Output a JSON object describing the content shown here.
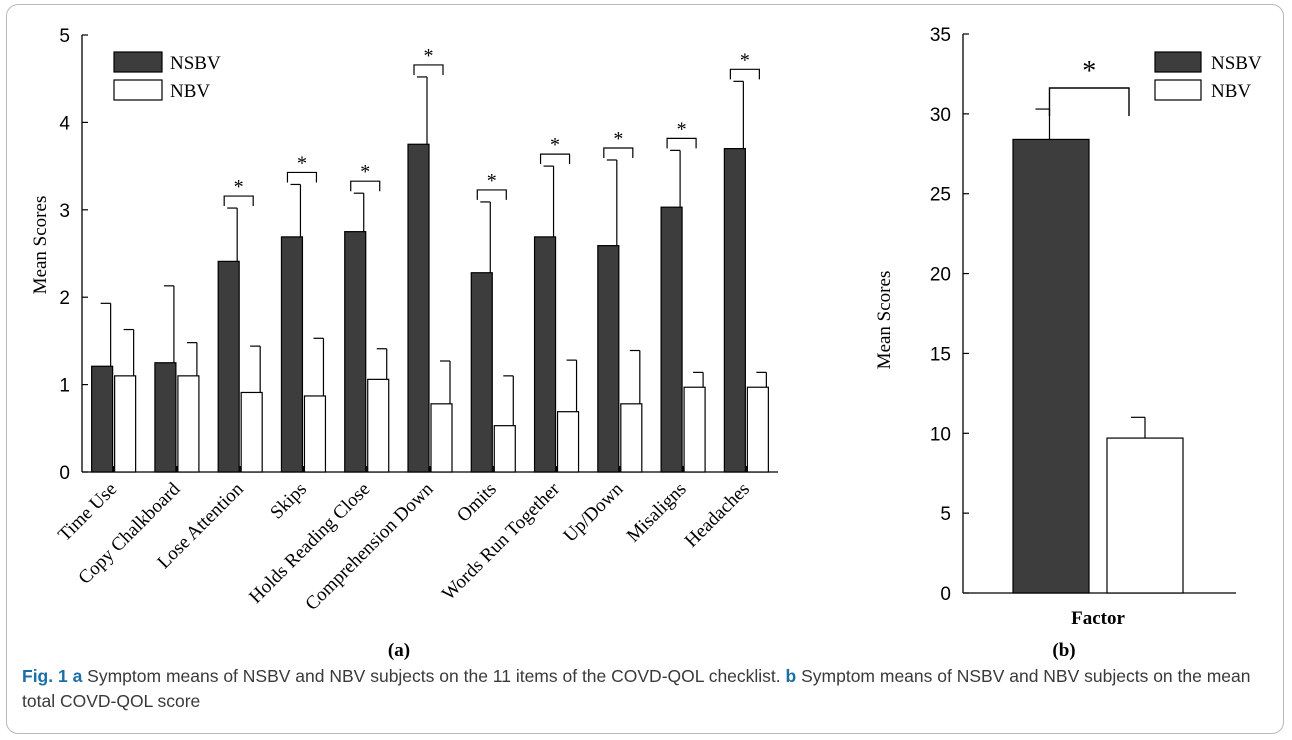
{
  "chart_data": [
    {
      "type": "bar",
      "panel_label": "(a)",
      "ylabel": "Mean Scores",
      "ylim": [
        0,
        5
      ],
      "yticks": [
        0,
        1,
        2,
        3,
        4,
        5
      ],
      "categories": [
        "Time Use",
        "Copy Chalkboard",
        "Lose Attention",
        "Skips",
        "Holds Reading Close",
        "Comprehension Down",
        "Omits",
        "Words Run Together",
        "Up/Down",
        "Misaligns",
        "Headaches"
      ],
      "series": [
        {
          "name": "NSBV",
          "color": "#3d3d3d",
          "values": [
            1.21,
            1.25,
            2.41,
            2.69,
            2.75,
            3.75,
            2.28,
            2.69,
            2.59,
            3.03,
            3.7
          ],
          "error": [
            0.72,
            0.88,
            0.61,
            0.6,
            0.44,
            0.77,
            0.81,
            0.81,
            0.98,
            0.65,
            0.77
          ]
        },
        {
          "name": "NBV",
          "color": "#ffffff",
          "values": [
            1.1,
            1.1,
            0.91,
            0.87,
            1.06,
            0.78,
            0.53,
            0.69,
            0.78,
            0.97,
            0.97
          ],
          "error": [
            0.53,
            0.38,
            0.53,
            0.66,
            0.35,
            0.49,
            0.57,
            0.59,
            0.61,
            0.17,
            0.17
          ]
        }
      ],
      "significance": [
        false,
        false,
        true,
        true,
        true,
        true,
        true,
        true,
        true,
        true,
        true
      ],
      "significance_label": "*",
      "legend": "top-left"
    },
    {
      "type": "bar",
      "panel_label": "(b)",
      "ylabel": "Mean Scores",
      "ylim": [
        0,
        35
      ],
      "yticks": [
        0,
        5,
        10,
        15,
        20,
        25,
        30,
        35
      ],
      "categories": [
        "Factor"
      ],
      "series": [
        {
          "name": "NSBV",
          "color": "#3d3d3d",
          "values": [
            28.4
          ],
          "error": [
            1.9
          ]
        },
        {
          "name": "NBV",
          "color": "#ffffff",
          "values": [
            9.7
          ],
          "error": [
            1.3
          ]
        }
      ],
      "significance": [
        true
      ],
      "significance_label": "*",
      "legend": "top-right"
    }
  ],
  "caption": {
    "fig_label": "Fig. 1",
    "part_a_letter": "a",
    "part_a_text": " Symptom means of NSBV and NBV subjects on the 11 items of the COVD-QOL checklist. ",
    "part_b_letter": "b",
    "part_b_text": " Symptom means of NSBV and NBV subjects on the mean total COVD-QOL score"
  }
}
